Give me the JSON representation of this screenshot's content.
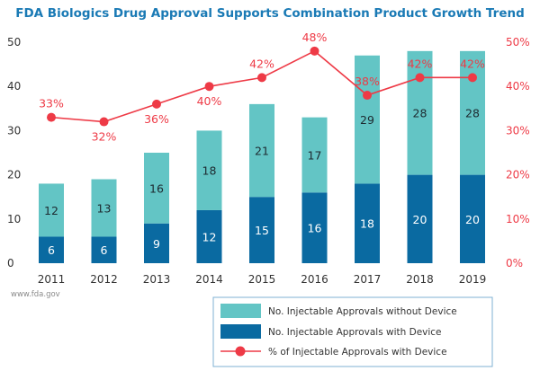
{
  "chart_data": {
    "type": "bar",
    "stacked": true,
    "title": "FDA Biologics Drug Approval Supports Combination Product Growth Trend",
    "categories": [
      "2011",
      "2012",
      "2013",
      "2014",
      "2015",
      "2016",
      "2017",
      "2018",
      "2019"
    ],
    "series": [
      {
        "name": "No. Injectable Approvals with Device",
        "type": "bar",
        "axis": "left",
        "color": "#0a6aa1",
        "values": [
          6,
          6,
          9,
          12,
          15,
          16,
          18,
          20,
          20
        ]
      },
      {
        "name": "No. Injectable Approvals without Device",
        "type": "bar",
        "axis": "left",
        "color": "#63c5c5",
        "values": [
          12,
          13,
          16,
          18,
          21,
          17,
          29,
          28,
          28
        ]
      },
      {
        "name": "% of Injectable Approvals with Device",
        "type": "line",
        "axis": "right",
        "color": "#ee3a46",
        "values": [
          33,
          32,
          36,
          40,
          42,
          48,
          38,
          42,
          42
        ],
        "labels": [
          "33%",
          "32%",
          "36%",
          "40%",
          "42%",
          "48%",
          "38%",
          "42%",
          "42%"
        ]
      }
    ],
    "y_left": {
      "label": "",
      "range": [
        0,
        50
      ],
      "ticks": [
        "0",
        "10",
        "20",
        "30",
        "40",
        "50"
      ]
    },
    "y_right": {
      "label": "",
      "range": [
        0,
        50
      ],
      "ticks": [
        "0%",
        "10%",
        "20%",
        "30%",
        "40%",
        "50%"
      ]
    },
    "xlabel": "",
    "grid": false,
    "legend": {
      "position": "bottom-right",
      "entries": [
        "No. Injectable Approvals without Device",
        "No. Injectable Approvals with Device",
        "% of Injectable Approvals with Device"
      ]
    },
    "source_note": "www.fda.gov"
  }
}
